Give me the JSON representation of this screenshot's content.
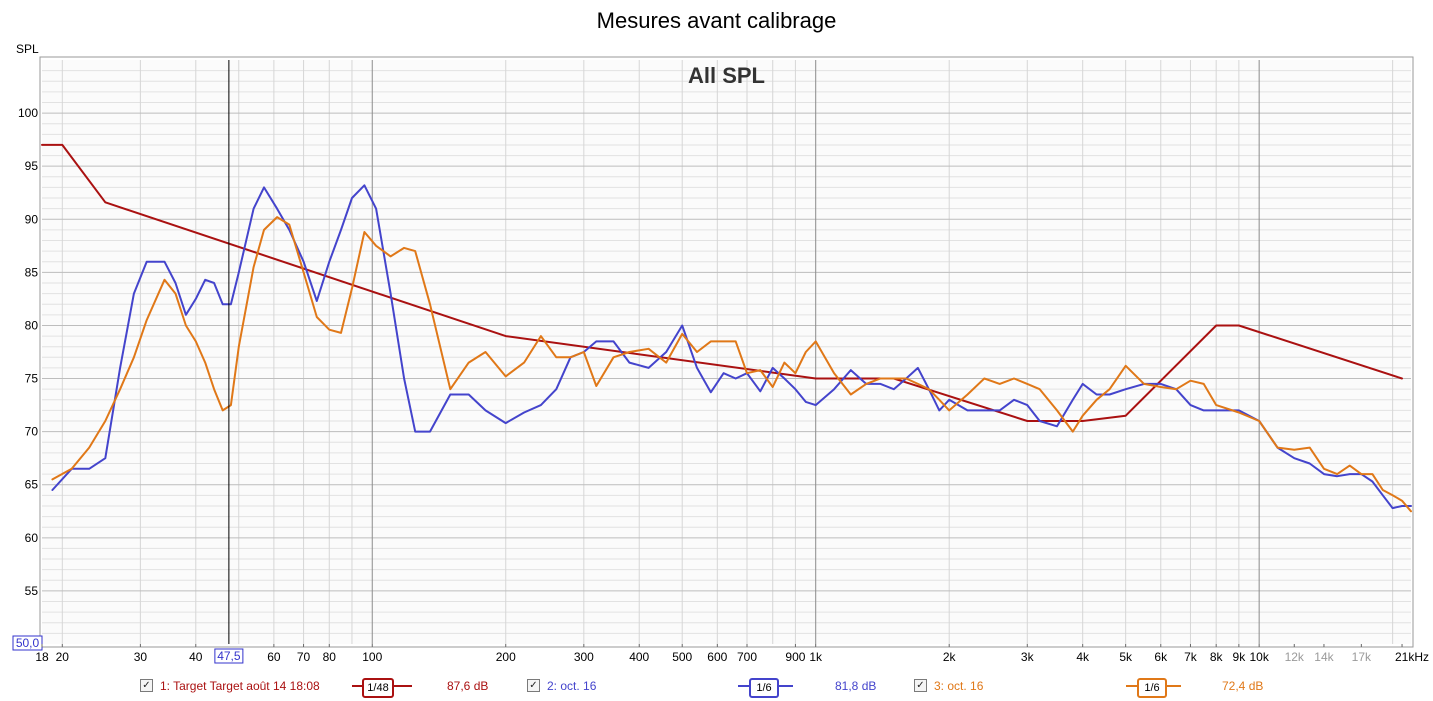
{
  "title": "Mesures avant calibrage",
  "chart_data": {
    "type": "line",
    "title": "Mesures avant calibrage",
    "subtitle": "All SPL",
    "ylabel": "SPL",
    "xlabel": "",
    "x_scale": "log",
    "xlim": [
      18,
      22000
    ],
    "ylim": [
      50,
      105
    ],
    "y_ticks": [
      55,
      60,
      65,
      70,
      75,
      80,
      85,
      90,
      95,
      100
    ],
    "y_tick_labels": [
      "55",
      "60",
      "65",
      "70",
      "75",
      "80",
      "85",
      "90",
      "95",
      "100"
    ],
    "x_ticks": [
      18,
      20,
      30,
      40,
      60,
      70,
      80,
      100,
      200,
      300,
      400,
      500,
      600,
      700,
      900,
      1000,
      2000,
      3000,
      4000,
      5000,
      6000,
      7000,
      8000,
      9000,
      10000,
      12000,
      14000,
      17000,
      21000
    ],
    "x_tick_labels": [
      "18",
      "20",
      "30",
      "40",
      "60",
      "70",
      "80",
      "100",
      "200",
      "300",
      "400",
      "500",
      "600",
      "700",
      "900",
      "1k",
      "2k",
      "3k",
      "4k",
      "5k",
      "6k",
      "7k",
      "8k",
      "9k",
      "10k",
      "12k",
      "14k",
      "17k",
      "21kHz"
    ],
    "x_tick_grey": [
      false,
      false,
      false,
      false,
      false,
      false,
      false,
      false,
      false,
      false,
      false,
      false,
      false,
      false,
      false,
      false,
      false,
      false,
      false,
      false,
      false,
      false,
      false,
      false,
      false,
      true,
      true,
      true,
      false
    ],
    "cursor": {
      "x_label": "47,5",
      "y_label": "50,0",
      "x_value": 47.5
    },
    "grid": true,
    "series": [
      {
        "name": "1: Target Target août 14 18:08",
        "color": "#aa1111",
        "smoothing": "1/48",
        "level": "87,6 dB",
        "x": [
          18,
          20,
          25,
          200,
          1000,
          1500,
          3000,
          4000,
          5000,
          8000,
          9000,
          21000
        ],
        "y": [
          97,
          97,
          91.6,
          79,
          75,
          75,
          71,
          71,
          71.5,
          80,
          80,
          75
        ]
      },
      {
        "name": "2: oct. 16",
        "color": "#4444cc",
        "smoothing": "1/6",
        "level": "81,8 dB",
        "x": [
          19,
          21,
          23,
          25,
          27,
          29,
          31,
          34,
          36,
          38,
          40,
          42,
          44,
          46,
          48,
          50,
          54,
          57,
          61,
          65,
          70,
          75,
          80,
          85,
          90,
          96,
          102,
          110,
          118,
          125,
          135,
          150,
          165,
          180,
          200,
          220,
          240,
          260,
          280,
          300,
          320,
          350,
          380,
          420,
          460,
          500,
          540,
          580,
          620,
          660,
          700,
          750,
          800,
          850,
          900,
          950,
          1000,
          1100,
          1200,
          1300,
          1400,
          1500,
          1600,
          1700,
          1800,
          1900,
          2000,
          2200,
          2400,
          2600,
          2800,
          3000,
          3200,
          3500,
          3800,
          4000,
          4300,
          4600,
          5000,
          5500,
          6000,
          6500,
          7000,
          7500,
          8000,
          9000,
          10000,
          11000,
          12000,
          13000,
          14000,
          15000,
          16000,
          17000,
          18000,
          19000,
          20000,
          21000,
          22000
        ],
        "y": [
          64.5,
          66.5,
          66.5,
          67.5,
          76,
          83,
          86,
          86,
          84,
          81,
          82.5,
          84.3,
          84,
          82,
          82,
          85,
          91,
          93,
          91,
          89,
          86,
          82.3,
          86,
          89,
          92,
          93.2,
          91,
          83,
          75,
          70,
          70,
          73.5,
          73.5,
          72,
          70.8,
          71.8,
          72.5,
          74,
          77,
          77.5,
          78.5,
          78.5,
          76.5,
          76,
          77.5,
          80,
          76,
          73.7,
          75.5,
          75,
          75.5,
          73.8,
          76,
          75,
          74,
          72.8,
          72.5,
          74,
          75.8,
          74.5,
          74.5,
          74,
          75,
          76,
          74,
          72,
          73,
          72,
          72,
          72,
          73,
          72.5,
          71,
          70.5,
          73,
          74.5,
          73.5,
          73.5,
          74,
          74.5,
          74.5,
          74,
          72.5,
          72,
          72,
          72,
          71,
          68.5,
          67.5,
          67,
          66,
          65.8,
          66,
          66,
          65.3,
          64,
          62.8,
          63,
          63
        ]
      },
      {
        "name": "3: oct. 16",
        "color": "#e07818",
        "smoothing": "1/6",
        "level": "72,4 dB",
        "x": [
          19,
          21,
          23,
          25,
          27,
          29,
          31,
          34,
          36,
          38,
          40,
          42,
          44,
          46,
          48,
          50,
          54,
          57,
          61,
          65,
          70,
          75,
          80,
          85,
          90,
          96,
          102,
          110,
          118,
          125,
          135,
          150,
          165,
          180,
          200,
          220,
          240,
          260,
          280,
          300,
          320,
          350,
          380,
          420,
          460,
          500,
          540,
          580,
          620,
          660,
          700,
          750,
          800,
          850,
          900,
          950,
          1000,
          1100,
          1200,
          1300,
          1400,
          1500,
          1600,
          1700,
          1800,
          1900,
          2000,
          2200,
          2400,
          2600,
          2800,
          3000,
          3200,
          3500,
          3800,
          4000,
          4300,
          4600,
          5000,
          5500,
          6000,
          6500,
          7000,
          7500,
          8000,
          9000,
          10000,
          11000,
          12000,
          13000,
          14000,
          15000,
          16000,
          17000,
          18000,
          19000,
          20000,
          21000,
          22000
        ],
        "y": [
          65.5,
          66.5,
          68.5,
          71,
          74,
          77,
          80.5,
          84.3,
          83,
          80,
          78.5,
          76.5,
          74,
          72,
          72.5,
          78,
          85.5,
          89,
          90.2,
          89.5,
          85,
          80.8,
          79.6,
          79.3,
          83.5,
          88.8,
          87.5,
          86.5,
          87.3,
          87,
          82,
          74,
          76.5,
          77.5,
          75.2,
          76.5,
          79,
          77,
          77,
          77.5,
          74.3,
          77,
          77.5,
          77.8,
          76.5,
          79.2,
          77.5,
          78.5,
          78.5,
          78.5,
          75.5,
          75.8,
          74.2,
          76.5,
          75.5,
          77.5,
          78.5,
          75.5,
          73.5,
          74.5,
          75,
          75,
          75,
          74.5,
          74,
          73,
          72,
          73.5,
          75,
          74.5,
          75,
          74.5,
          74,
          72,
          70,
          71.5,
          73,
          74,
          76.2,
          74.5,
          74.2,
          74,
          74.8,
          74.5,
          72.5,
          71.8,
          71,
          68.5,
          68.3,
          68.5,
          66.5,
          66,
          66.8,
          66,
          66,
          64.5,
          64,
          63.5,
          62.5
        ]
      }
    ]
  },
  "legend": [
    {
      "label": "1: Target Target août 14 18:08",
      "smoothing": "1/48",
      "level": "87,6 dB",
      "color": "#aa1111"
    },
    {
      "label": "2: oct. 16",
      "smoothing": "1/6",
      "level": "81,8 dB",
      "color": "#4444cc"
    },
    {
      "label": "3: oct. 16",
      "smoothing": "1/6",
      "level": "72,4 dB",
      "color": "#e07818"
    }
  ]
}
